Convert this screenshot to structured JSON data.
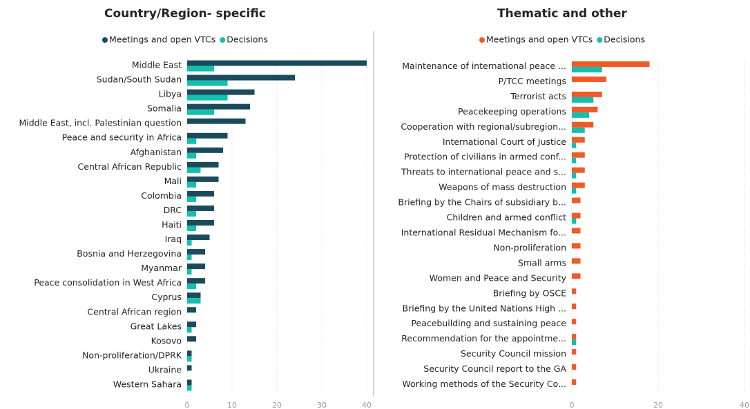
{
  "chart_data": [
    {
      "type": "bar",
      "orientation": "horizontal",
      "title": "Country/Region- specific",
      "categories": [
        "Middle East",
        "Sudan/South Sudan",
        "Libya",
        "Somalia",
        "Middle East, incl. Palestinian question",
        "Peace and security in Africa",
        "Afghanistan",
        "Central African Republic",
        "Mali",
        "Colombia",
        "DRC",
        "Haiti",
        "Iraq",
        "Bosnia and Herzegovina",
        "Myanmar",
        "Peace consolidation in West Africa",
        "Cyprus",
        "Central African region",
        "Great Lakes",
        "Kosovo",
        "Non-proliferation/DPRK",
        "Ukraine",
        "Western Sahara"
      ],
      "series": [
        {
          "name": "Meetings and open VTCs",
          "color": "#1b4a5c",
          "values": [
            40,
            24,
            15,
            14,
            13,
            9,
            8,
            7,
            7,
            6,
            6,
            6,
            5,
            4,
            4,
            4,
            3,
            2,
            2,
            2,
            1,
            1,
            1
          ]
        },
        {
          "name": "Decisions",
          "color": "#14bfae",
          "values": [
            6,
            9,
            9,
            6,
            0,
            2,
            2,
            3,
            2,
            2,
            2,
            2,
            1,
            1,
            1,
            2,
            3,
            0,
            1,
            0,
            1,
            0,
            1
          ]
        }
      ],
      "xlim": [
        0,
        40
      ],
      "xticks": [
        0,
        10,
        20,
        30,
        40
      ],
      "grid": true
    },
    {
      "type": "bar",
      "orientation": "horizontal",
      "title": "Thematic and other",
      "categories": [
        "Maintenance of international peace ...",
        "P/TCC meetings",
        "Terrorist acts",
        "Peacekeeping operations",
        "Cooperation with regional/subregion...",
        "International Court of Justice",
        "Protection of civilians in armed conf...",
        "Threats to international peace and s...",
        "Weapons of mass destruction",
        "Briefing by the Chairs of subsidiary b...",
        "Children and armed conflict",
        "International Residual Mechanism fo...",
        "Non-proliferation",
        "Small arms",
        "Women and Peace and Security",
        "Briefing by OSCE",
        "Briefing by the United Nations High ...",
        "Peacebuilding and sustaining peace",
        "Recommendation for the appointme...",
        "Security Council mission",
        "Security Council report to the GA",
        "Working methods of the Security Co..."
      ],
      "series": [
        {
          "name": "Meetings and open VTCs",
          "color": "#f05a28",
          "values": [
            18,
            8,
            7,
            6,
            5,
            3,
            3,
            3,
            3,
            2,
            2,
            2,
            2,
            2,
            2,
            1,
            1,
            1,
            1,
            1,
            1,
            1
          ]
        },
        {
          "name": "Decisions",
          "color": "#14bfae",
          "values": [
            7,
            0,
            5,
            4,
            3,
            1,
            1,
            1,
            1,
            0,
            1,
            0,
            0,
            0,
            0,
            0,
            0,
            0,
            1,
            0,
            0,
            0
          ]
        }
      ],
      "xlim": [
        0,
        40
      ],
      "xticks": [
        0,
        20,
        40
      ],
      "grid": true
    }
  ]
}
